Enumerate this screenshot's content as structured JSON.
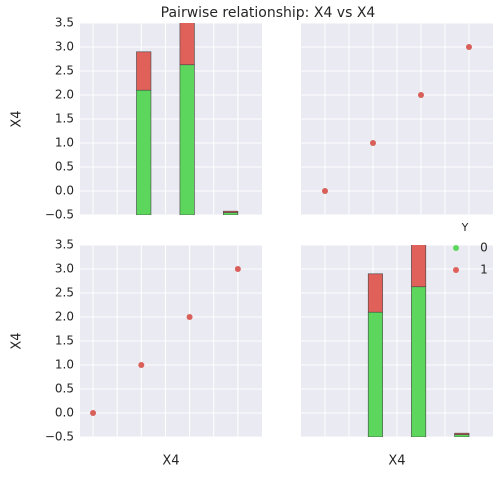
{
  "chart_data": {
    "type": "pairplot",
    "title": "Pairwise relationship: X4 vs X4",
    "x_label": "X4",
    "y_label": "X4",
    "legend_title": "Y",
    "xlims": [
      [
        -0.27,
        3.5
      ],
      [
        -0.5,
        3.5
      ]
    ],
    "xticks": [
      0,
      0.5,
      1,
      1.5,
      2,
      2.5,
      3
    ],
    "ylim": [
      -0.5,
      3.5
    ],
    "yticks": [
      {
        "value": -0.5,
        "label": "−0.5"
      },
      {
        "value": 0,
        "label": "0.0"
      },
      {
        "value": 0.5,
        "label": "0.5"
      },
      {
        "value": 1,
        "label": "1.0"
      },
      {
        "value": 1.5,
        "label": "1.5"
      },
      {
        "value": 2,
        "label": "2.0"
      },
      {
        "value": 2.5,
        "label": "2.5"
      },
      {
        "value": 3,
        "label": "3.0"
      },
      {
        "value": 3.5,
        "label": "3.5"
      }
    ],
    "grid": true,
    "scatter": {
      "x": [
        0,
        1,
        2,
        3
      ],
      "y": [
        0,
        1,
        2,
        3
      ],
      "color": "#d9605a"
    },
    "hist": {
      "bins": [
        0,
        0.3,
        0.6,
        0.9,
        1.2,
        1.5,
        1.8,
        2.1,
        2.4,
        2.7,
        3.0
      ],
      "series": [
        {
          "name": "0",
          "color": "#5cd65c",
          "values": [
            0,
            0,
            0,
            2.6,
            0,
            0,
            3.13,
            0,
            0,
            0.05
          ]
        },
        {
          "name": "1",
          "color": "#e0605a",
          "values": [
            0,
            0,
            0,
            0.8,
            0,
            0,
            1.0,
            0,
            0,
            0.03
          ]
        }
      ]
    }
  }
}
